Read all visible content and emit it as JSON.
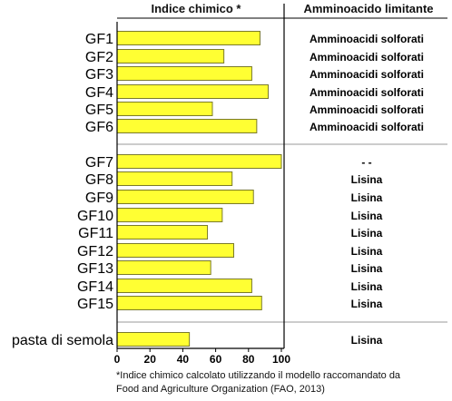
{
  "chart_data": {
    "type": "bar",
    "orientation": "horizontal",
    "column_headers": [
      "Indice chimico *",
      "Amminoacido limitante"
    ],
    "categories": [
      "GF1",
      "GF2",
      "GF3",
      "GF4",
      "GF5",
      "GF6",
      "GF7",
      "GF8",
      "GF9",
      "GF10",
      "GF11",
      "GF12",
      "GF13",
      "GF14",
      "GF15",
      "pasta di semola"
    ],
    "values": [
      87,
      65,
      82,
      92,
      58,
      85,
      100,
      70,
      83,
      64,
      55,
      71,
      57,
      82,
      88,
      44
    ],
    "limiting_amino_acid": [
      "Amminoacidi solforati",
      "Amminoacidi solforati",
      "Amminoacidi solforati",
      "Amminoacidi solforati",
      "Amminoacidi solforati",
      "Amminoacidi solforati",
      "- -",
      "Lisina",
      "Lisina",
      "Lisina",
      "Lisina",
      "Lisina",
      "Lisina",
      "Lisina",
      "Lisina",
      "Lisina"
    ],
    "groups": [
      [
        0,
        5
      ],
      [
        6,
        14
      ],
      [
        15,
        15
      ]
    ],
    "xlim": [
      0,
      100
    ],
    "xticks": [
      "0",
      "20",
      "40",
      "60",
      "80",
      "100"
    ],
    "bar_color": "#ffff33",
    "grid": false
  },
  "footnote": {
    "line1": "*Indice chimico calcolato utilizzando il modello raccomandato da",
    "line2": "Food and Agriculture Organization (FAO, 2013)"
  }
}
